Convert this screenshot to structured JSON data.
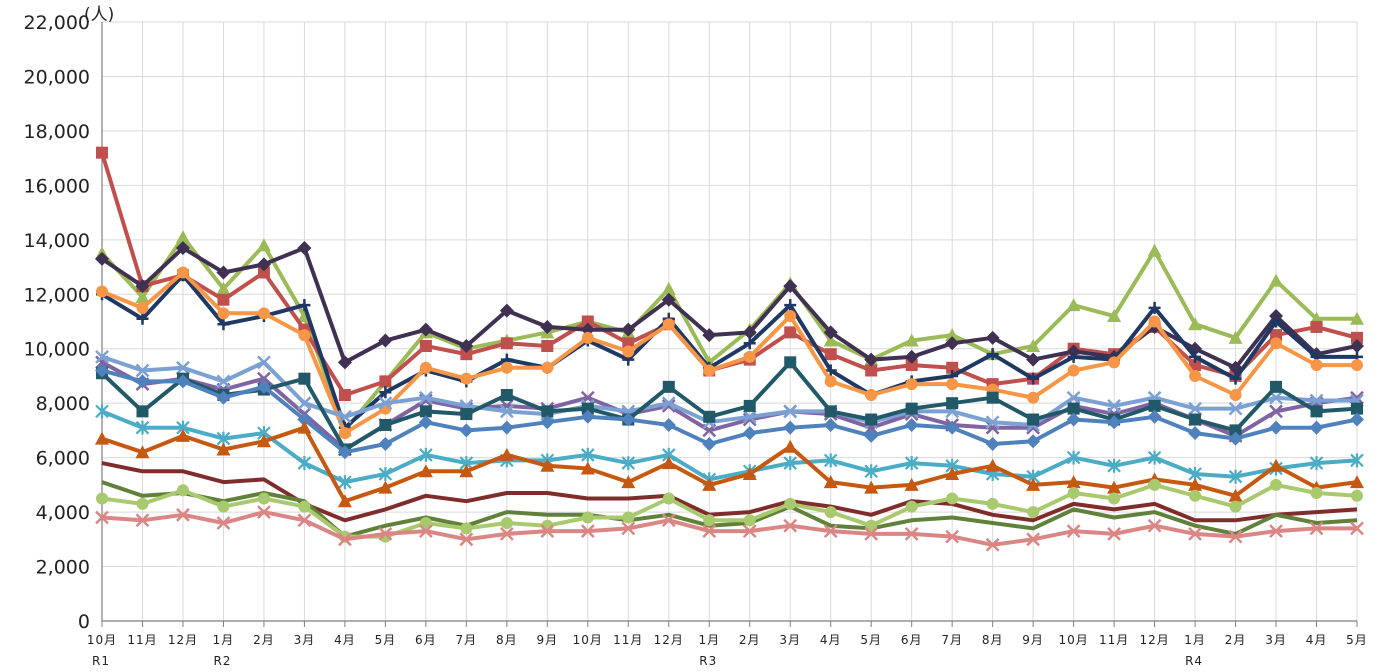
{
  "chart_data": {
    "type": "line",
    "unit_label": "(人)",
    "ylim": [
      0,
      22000
    ],
    "yticks": [
      0,
      2000,
      4000,
      6000,
      8000,
      10000,
      12000,
      14000,
      16000,
      18000,
      20000,
      22000
    ],
    "ytick_labels": [
      "0",
      "2,000",
      "4,000",
      "6,000",
      "8,000",
      "10,000",
      "12,000",
      "14,000",
      "16,000",
      "18,000",
      "20,000",
      "22,000"
    ],
    "grid": true,
    "legend": "none",
    "categories": [
      "10月",
      "11月",
      "12月",
      "1月",
      "2月",
      "3月",
      "4月",
      "5月",
      "6月",
      "7月",
      "8月",
      "9月",
      "10月",
      "11月",
      "12月",
      "1月",
      "2月",
      "3月",
      "4月",
      "5月",
      "6月",
      "7月",
      "8月",
      "9月",
      "10月",
      "11月",
      "12月",
      "1月",
      "2月",
      "3月",
      "4月",
      "5月"
    ],
    "year_labels": [
      {
        "index": 0,
        "label": "R1"
      },
      {
        "index": 3,
        "label": "R2"
      },
      {
        "index": 15,
        "label": "R3"
      },
      {
        "index": 27,
        "label": "R4"
      }
    ],
    "series": [
      {
        "color": "#9bbb59",
        "marker": "triangle",
        "values": [
          13500,
          11900,
          14100,
          12200,
          13800,
          11200,
          7000,
          8800,
          10600,
          10000,
          10300,
          10600,
          11000,
          10600,
          12200,
          9500,
          10700,
          12400,
          10300,
          9600,
          10300,
          10500,
          9800,
          10100,
          11600,
          11200,
          13600,
          10900,
          10400,
          12500,
          11100,
          11100
        ]
      },
      {
        "color": "#c0504d",
        "marker": "square",
        "values": [
          17200,
          12300,
          12700,
          11800,
          12800,
          10700,
          8300,
          8800,
          10100,
          9800,
          10200,
          10100,
          11000,
          10200,
          10900,
          9200,
          9600,
          10600,
          9800,
          9200,
          9400,
          9300,
          8700,
          8900,
          10000,
          9800,
          10800,
          9400,
          9000,
          10500,
          10800,
          10400
        ]
      },
      {
        "color": "#403152",
        "marker": "diamond",
        "values": [
          13300,
          12300,
          13700,
          12800,
          13100,
          13700,
          9500,
          10300,
          10700,
          10100,
          11400,
          10800,
          10700,
          10700,
          11800,
          10500,
          10600,
          12300,
          10600,
          9600,
          9700,
          10200,
          10400,
          9600,
          9900,
          9700,
          10800,
          10000,
          9300,
          11200,
          9800,
          10100
        ]
      },
      {
        "color": "#1f3864",
        "marker": "plus",
        "values": [
          12000,
          11100,
          12700,
          10900,
          11200,
          11600,
          7100,
          8400,
          9200,
          8800,
          9600,
          9300,
          10300,
          9600,
          11100,
          9300,
          10200,
          11600,
          9200,
          8300,
          8800,
          9000,
          9800,
          8900,
          9700,
          9600,
          11500,
          9700,
          8900,
          11000,
          9700,
          9700
        ]
      },
      {
        "color": "#f79646",
        "marker": "circle",
        "values": [
          12100,
          11500,
          12800,
          11300,
          11300,
          10500,
          6900,
          7800,
          9300,
          8900,
          9300,
          9300,
          10400,
          9900,
          10900,
          9200,
          9700,
          11200,
          8800,
          8300,
          8700,
          8700,
          8500,
          8200,
          9200,
          9500,
          11000,
          9000,
          8300,
          10200,
          9400,
          9400
        ]
      },
      {
        "color": "#8064a2",
        "marker": "xmark",
        "values": [
          9500,
          8700,
          8900,
          8500,
          8900,
          7600,
          6300,
          7200,
          8100,
          7800,
          7900,
          7800,
          8200,
          7600,
          7900,
          7000,
          7400,
          7700,
          7600,
          7100,
          7600,
          7200,
          7100,
          7100,
          7900,
          7600,
          8000,
          7400,
          6800,
          7700,
          8000,
          8200
        ]
      },
      {
        "color": "#7ba0d4",
        "marker": "xmark",
        "values": [
          9700,
          9200,
          9300,
          8800,
          9500,
          8000,
          7500,
          8000,
          8200,
          7900,
          7700,
          7600,
          7900,
          7700,
          8000,
          7300,
          7500,
          7700,
          7700,
          7300,
          7700,
          7700,
          7300,
          7200,
          8200,
          7900,
          8200,
          7800,
          7800,
          8200,
          8100,
          8100
        ]
      },
      {
        "color": "#215968",
        "marker": "square",
        "values": [
          9100,
          7700,
          8900,
          8300,
          8500,
          8900,
          6300,
          7200,
          7700,
          7600,
          8300,
          7700,
          7800,
          7400,
          8600,
          7500,
          7900,
          9500,
          7700,
          7400,
          7800,
          8000,
          8200,
          7400,
          7800,
          7400,
          7900,
          7400,
          7000,
          8600,
          7700,
          7800
        ]
      },
      {
        "color": "#4f81bd",
        "marker": "diamond",
        "values": [
          9200,
          8800,
          8800,
          8200,
          8600,
          7400,
          6200,
          6500,
          7300,
          7000,
          7100,
          7300,
          7500,
          7400,
          7200,
          6500,
          6900,
          7100,
          7200,
          6800,
          7200,
          7100,
          6500,
          6600,
          7400,
          7300,
          7500,
          6900,
          6700,
          7100,
          7100,
          7400
        ]
      },
      {
        "color": "#4bacc6",
        "marker": "star",
        "values": [
          7700,
          7100,
          7100,
          6700,
          6900,
          5800,
          5100,
          5400,
          6100,
          5800,
          5900,
          5900,
          6100,
          5800,
          6100,
          5200,
          5500,
          5800,
          5900,
          5500,
          5800,
          5700,
          5400,
          5300,
          6000,
          5700,
          6000,
          5400,
          5300,
          5600,
          5800,
          5900
        ]
      },
      {
        "color": "#c65911",
        "marker": "triangle",
        "values": [
          6700,
          6200,
          6800,
          6300,
          6600,
          7100,
          4400,
          4900,
          5500,
          5500,
          6100,
          5700,
          5600,
          5100,
          5800,
          5000,
          5400,
          6400,
          5100,
          4900,
          5000,
          5400,
          5700,
          5000,
          5100,
          4900,
          5200,
          5000,
          4600,
          5700,
          4900,
          5100
        ]
      },
      {
        "color": "#7f2c2b",
        "marker": "none",
        "values": [
          5800,
          5500,
          5500,
          5100,
          5200,
          4300,
          3700,
          4100,
          4600,
          4400,
          4700,
          4700,
          4500,
          4500,
          4600,
          3900,
          4000,
          4400,
          4200,
          3900,
          4400,
          4300,
          3900,
          3700,
          4300,
          4100,
          4300,
          3700,
          3700,
          3900,
          4000,
          4100
        ]
      },
      {
        "color": "#60813a",
        "marker": "none",
        "values": [
          5100,
          4600,
          4700,
          4400,
          4700,
          4400,
          3100,
          3500,
          3800,
          3500,
          4000,
          3900,
          3900,
          3700,
          3900,
          3500,
          3600,
          4200,
          3500,
          3400,
          3700,
          3800,
          3600,
          3400,
          4100,
          3800,
          4000,
          3500,
          3200,
          3900,
          3600,
          3700
        ]
      },
      {
        "color": "#a9c96f",
        "marker": "circle",
        "values": [
          4500,
          4300,
          4800,
          4200,
          4500,
          4200,
          3100,
          3100,
          3600,
          3400,
          3600,
          3500,
          3800,
          3800,
          4500,
          3700,
          3700,
          4300,
          4000,
          3500,
          4200,
          4500,
          4300,
          4000,
          4700,
          4500,
          5000,
          4600,
          4200,
          5000,
          4700,
          4600
        ]
      },
      {
        "color": "#da8684",
        "marker": "xmark",
        "values": [
          3800,
          3700,
          3900,
          3600,
          4000,
          3700,
          3000,
          3200,
          3300,
          3000,
          3200,
          3300,
          3300,
          3400,
          3700,
          3300,
          3300,
          3500,
          3300,
          3200,
          3200,
          3100,
          2800,
          3000,
          3300,
          3200,
          3500,
          3200,
          3100,
          3300,
          3400,
          3400
        ]
      }
    ]
  }
}
